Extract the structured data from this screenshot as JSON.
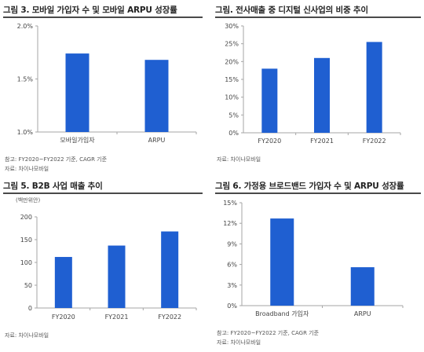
{
  "colors": {
    "bar": "#1f5fd1",
    "axis": "#a6a6a6"
  },
  "panels": [
    {
      "title": "그림 3. 모바일 가입자 수 및 모바일 ARPU 성장률",
      "notes": [
        "참고: FY2020~FY2022 기준, CAGR 기준",
        "자료: 차이나모바일"
      ]
    },
    {
      "title": "그림. 전사매출 중 디지털 신사업의 비중 추이",
      "notes": [
        "자료: 차이나모바일"
      ]
    },
    {
      "title": "그림 5. B2B 사업 매출 추이",
      "unit": "(백만위안)",
      "notes": [
        "자료: 차이나모바일"
      ]
    },
    {
      "title": "그림 6. 가정용 브로드밴드 가입자 수 및 ARPU 성장률",
      "notes": [
        "참고: FY2020~FY2022 기준, CAGR 기준",
        "자료: 차이나모바일"
      ]
    }
  ],
  "chart_data": [
    {
      "type": "bar",
      "title": "그림 3. 모바일 가입자 수 및 모바일 ARPU 성장률",
      "categories": [
        "모바일가입자",
        "ARPU"
      ],
      "values": [
        1.74,
        1.68
      ],
      "unit": "%",
      "ylim": [
        1.0,
        2.0
      ],
      "yticks": [
        1.0,
        1.5,
        2.0
      ],
      "ytick_labels": [
        "1.0%",
        "1.5%",
        "2.0%"
      ],
      "grid": false
    },
    {
      "type": "bar",
      "title": "그림. 전사매출 중 디지털 신사업의 비중 추이",
      "categories": [
        "FY2020",
        "FY2021",
        "FY2022"
      ],
      "values": [
        18.0,
        21.0,
        25.5
      ],
      "unit": "%",
      "ylim": [
        0,
        30
      ],
      "yticks": [
        0,
        5,
        10,
        15,
        20,
        25,
        30
      ],
      "ytick_labels": [
        "0%",
        "5%",
        "10%",
        "15%",
        "20%",
        "25%",
        "30%"
      ],
      "grid": false
    },
    {
      "type": "bar",
      "title": "그림 5. B2B 사업 매출 추이",
      "ylabel": "(백만위안)",
      "categories": [
        "FY2020",
        "FY2021",
        "FY2022"
      ],
      "values": [
        112,
        137,
        168
      ],
      "ylim": [
        0,
        200
      ],
      "yticks": [
        0,
        50,
        100,
        150,
        200
      ],
      "ytick_labels": [
        "0",
        "50",
        "100",
        "150",
        "200"
      ],
      "grid": false
    },
    {
      "type": "bar",
      "title": "그림 6. 가정용 브로드밴드 가입자 수 및 ARPU 성장률",
      "categories": [
        "Broadband 가입자",
        "ARPU"
      ],
      "values": [
        12.7,
        5.6
      ],
      "unit": "%",
      "ylim": [
        0,
        15
      ],
      "yticks": [
        0,
        3,
        6,
        9,
        12,
        15
      ],
      "ytick_labels": [
        "0%",
        "3%",
        "6%",
        "9%",
        "12%",
        "15%"
      ],
      "grid": false
    }
  ]
}
